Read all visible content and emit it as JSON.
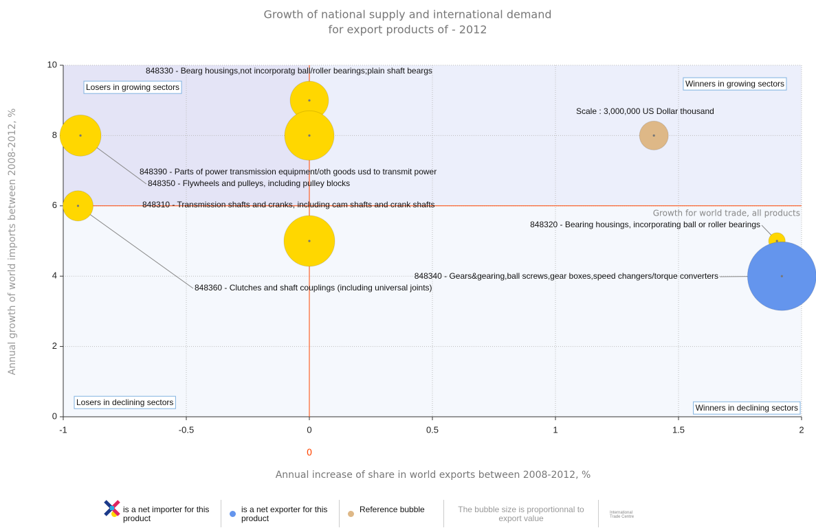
{
  "chart_data": {
    "type": "bubble",
    "title": [
      "Growth of national supply and international demand",
      "for export products of  - 2012"
    ],
    "x_label": "Annual increase of  share in world exports between 2008-2012, %",
    "y_label": "Annual growth of world imports between 2008-2012, %",
    "xlim": [
      -1,
      2
    ],
    "xticks": [
      -1,
      -0.5,
      0,
      0.5,
      1,
      1.5,
      2
    ],
    "ylim": [
      0,
      10
    ],
    "yticks": [
      0,
      2,
      4,
      6,
      8,
      10
    ],
    "grid": true,
    "size_unit": "US Dollar thousand",
    "series": [
      {
        "name": "is a net importer for this product",
        "color": "#ffd700",
        "labels": [
          "848330 - Bearg housings,not incorporatg ball/roller bearings;plain shaft beargs",
          "848390 - Parts of power transmission equipment/oth goods usd to transmit power",
          "848350 - Flywheels and pulleys, including pulley blocks",
          "848360 - Clutches and shaft couplings (including universal joints)",
          "848310 - Transmission shafts and cranks, including cam shafts and crank shafts",
          "848320 - Bearing housings, incorporating ball or roller bearings"
        ],
        "x": [
          0,
          0,
          -0.93,
          -0.94,
          0,
          1.9
        ],
        "values": [
          9,
          8,
          8,
          6,
          5,
          5
        ],
        "sizes": [
          5300000,
          8800000,
          6100000,
          3300000,
          9300000,
          1000000
        ]
      },
      {
        "name": "is a net exporter for this product",
        "color": "#6495ed",
        "labels": [
          "848340 - Gears&gearing,ball screws,gear boxes,speed changers/torque converters"
        ],
        "x": [
          1.92
        ],
        "values": [
          4
        ],
        "sizes": [
          17000000
        ]
      },
      {
        "name": "Reference bubble",
        "color": "#deb887",
        "labels": [
          "Scale : 3,000,000 US Dollar thousand"
        ],
        "x": [
          1.4
        ],
        "values": [
          8
        ],
        "sizes": [
          3000000
        ]
      }
    ],
    "reference_lines": {
      "x": 0,
      "y": 6,
      "color": "#ff4500",
      "label": "Growth for world trade, all products"
    },
    "quadrant_labels": {
      "top_left": "Losers in growing sectors",
      "top_right": "Winners in growing sectors",
      "bottom_left": "Losers in declining sectors",
      "bottom_right": "Winners in declining sectors"
    },
    "size_note": "The bubble size is proportionnal to export value",
    "logo_text": "International Trade Centre"
  }
}
